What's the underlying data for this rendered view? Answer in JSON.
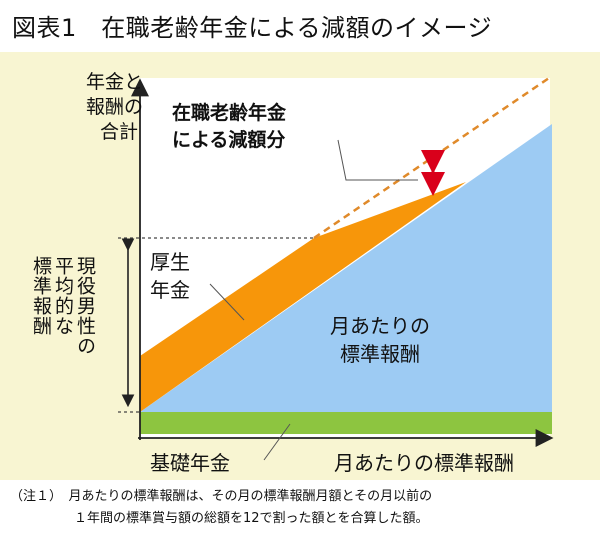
{
  "title": "図表1　在職老齢年金による減額のイメージ",
  "y_axis_label": [
    "年金と",
    "報酬の",
    "合計"
  ],
  "x_axis_label": "月あたりの標準報酬",
  "reduction_label": [
    "在職老齢年金",
    "による減額分"
  ],
  "kousei_label": [
    "厚生",
    "年金"
  ],
  "monthly_label": [
    "月あたりの",
    "標準報酬"
  ],
  "kiso_label": "基礎年金",
  "left_bracket_label": [
    "現役男性の",
    "平均的な",
    "標準報酬"
  ],
  "note": {
    "prefix": "（注１）",
    "line1": "月あたりの標準報酬は、その月の標準報酬月額とその月以前の",
    "line2": "１年間の標準賞与額の総額を12で割った額とを合算した額。"
  },
  "colors": {
    "background_panel": "#f8f5d2",
    "kousei_nenkin": "#f7960a",
    "monthly_salary": "#9dcbf3",
    "kiso_nenkin": "#8dc540",
    "dashed_line": "#e08a2a",
    "arrow": "#d9001b"
  }
}
